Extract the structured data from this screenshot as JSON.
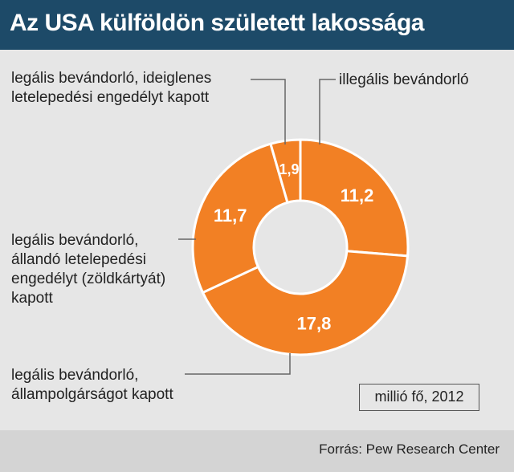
{
  "header": {
    "title": "Az USA külföldön született lakossága"
  },
  "chart_data": {
    "type": "pie",
    "donut": true,
    "title": "Az USA külföldön született lakossága",
    "unit": "millió fő, 2012",
    "source": "Forrás: Pew Research Center",
    "color": "#f28024",
    "slices": [
      {
        "label": "illegális bevándorló",
        "value": 11.2,
        "value_label": "11,2"
      },
      {
        "label": "legális bevándorló, állampolgárságot kapott",
        "value": 17.8,
        "value_label": "17,8"
      },
      {
        "label": "legális bevándorló, állandó letelepedési engedélyt (zöldkártyát) kapott",
        "value": 11.7,
        "value_label": "11,7"
      },
      {
        "label": "legális bevándorló, ideiglenes letelepedési engedélyt kapott",
        "value": 1.9,
        "value_label": "1,9"
      }
    ]
  },
  "labels": {
    "illegal": "illegális bevándorló",
    "temporary": "legális bevándorló, ideiglenes\nletelepedési engedélyt kapott",
    "greencard": "legális bevándorló,\nállandó letelepedési\nengedélyt (zöldkártyát)\nkapott",
    "citizen": "legális bevándorló,\nállampolgárságot kapott"
  },
  "footer": {
    "source": "Forrás: Pew Research Center"
  }
}
